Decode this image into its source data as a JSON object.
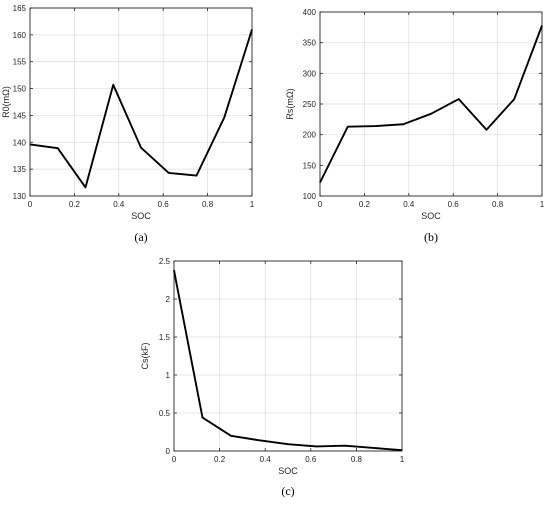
{
  "chart_data": [
    {
      "id": "a",
      "type": "line",
      "caption": "(a)",
      "xlabel": "SOC",
      "ylabel": "R0(mΩ)",
      "xlim": [
        0,
        1
      ],
      "ylim": [
        130,
        165
      ],
      "xticks": [
        0,
        0.2,
        0.4,
        0.6,
        0.8,
        1
      ],
      "yticks": [
        130,
        135,
        140,
        145,
        150,
        155,
        160,
        165
      ],
      "grid": true,
      "series": [
        {
          "color": "#000000",
          "x": [
            0,
            0.125,
            0.25,
            0.375,
            0.5,
            0.625,
            0.75,
            0.875,
            1
          ],
          "y": [
            139.6,
            138.9,
            131.6,
            150.7,
            139.0,
            134.3,
            133.8,
            144.6,
            161.0
          ]
        }
      ]
    },
    {
      "id": "b",
      "type": "line",
      "caption": "(b)",
      "xlabel": "SOC",
      "ylabel": "Rs(mΩ)",
      "xlim": [
        0,
        1
      ],
      "ylim": [
        100,
        400
      ],
      "xticks": [
        0,
        0.2,
        0.4,
        0.6,
        0.8,
        1
      ],
      "yticks": [
        100,
        150,
        200,
        250,
        300,
        350,
        400
      ],
      "grid": true,
      "series": [
        {
          "color": "#000000",
          "x": [
            0,
            0.125,
            0.25,
            0.375,
            0.5,
            0.625,
            0.75,
            0.875,
            1
          ],
          "y": [
            122,
            213,
            214,
            217,
            234,
            258,
            208,
            258,
            378
          ]
        }
      ]
    },
    {
      "id": "c",
      "type": "line",
      "caption": "(c)",
      "xlabel": "SOC",
      "ylabel": "Cs(kF)",
      "xlim": [
        0,
        1
      ],
      "ylim": [
        0,
        2.5
      ],
      "xticks": [
        0,
        0.2,
        0.4,
        0.6,
        0.8,
        1
      ],
      "yticks": [
        0,
        0.5,
        1,
        1.5,
        2,
        2.5
      ],
      "grid": true,
      "series": [
        {
          "color": "#000000",
          "x": [
            0,
            0.01,
            0.125,
            0.25,
            0.375,
            0.5,
            0.625,
            0.75,
            0.875,
            1
          ],
          "y": [
            2.38,
            2.22,
            0.44,
            0.2,
            0.14,
            0.09,
            0.06,
            0.07,
            0.04,
            0.01
          ]
        }
      ]
    }
  ]
}
